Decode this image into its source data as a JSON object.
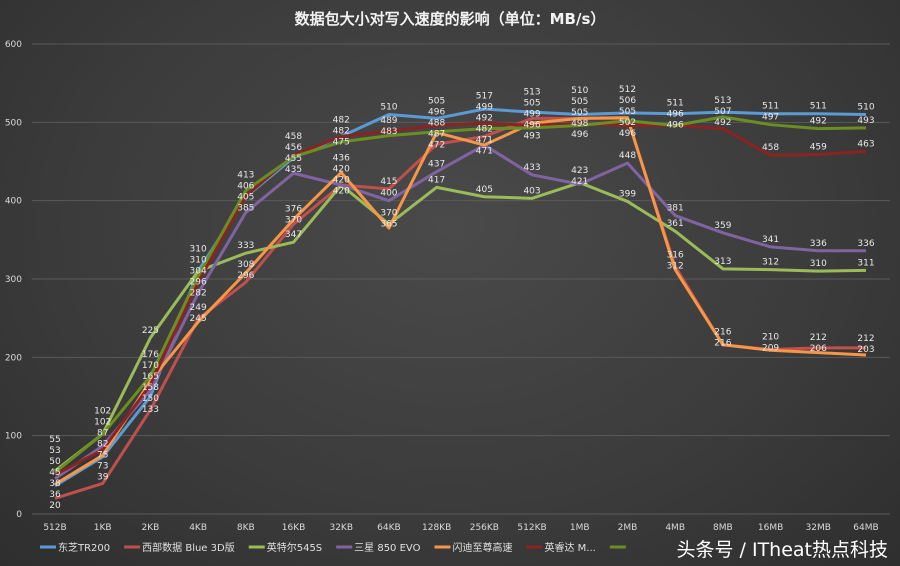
{
  "chart_data": {
    "type": "line",
    "title": "数据包大小对写入速度的影响（单位：MB/s）",
    "xlabel": "",
    "ylabel": "",
    "ylim": [
      0,
      600
    ],
    "yticks": [
      0,
      100,
      200,
      300,
      400,
      500,
      600
    ],
    "grid": true,
    "legend": "bottom",
    "categories": [
      "512B",
      "1KB",
      "2KB",
      "4KB",
      "8KB",
      "16KB",
      "32KB",
      "64KB",
      "128KB",
      "256KB",
      "512KB",
      "1MB",
      "2MB",
      "4MB",
      "8MB",
      "16MB",
      "32MB",
      "64MB"
    ],
    "series": [
      {
        "name": "东芝TR200",
        "color": "#5b9bd5",
        "values": [
          36,
          73,
          150,
          310,
          405,
          455,
          482,
          510,
          505,
          517,
          513,
          510,
          512,
          511,
          513,
          511,
          511,
          510
        ]
      },
      {
        "name": "西部数据 Blue 3D版",
        "color": "#c0504d",
        "values": [
          20,
          39,
          133,
          249,
          296,
          370,
          420,
          415,
          472,
          482,
          505,
          505,
          505,
          316,
          216,
          210,
          212,
          212
        ]
      },
      {
        "name": "英特尔545S",
        "color": "#9bbb59",
        "values": [
          55,
          102,
          225,
          310,
          333,
          347,
          420,
          370,
          417,
          405,
          403,
          423,
          399,
          361,
          313,
          312,
          310,
          311
        ]
      },
      {
        "name": "三星 850 EVO",
        "color": "#8064a2",
        "values": [
          45,
          87,
          158,
          282,
          385,
          435,
          420,
          400,
          437,
          471,
          433,
          421,
          448,
          381,
          359,
          341,
          336,
          336
        ]
      },
      {
        "name": "闪迪至尊高速",
        "color": "#f79646",
        "values": [
          38,
          75,
          170,
          245,
          308,
          376,
          436,
          365,
          487,
          471,
          499,
          505,
          506,
          312,
          216,
          209,
          206,
          203
        ]
      },
      {
        "name": "英睿达 M...",
        "color": "#8b2323",
        "values": [
          50,
          82,
          165,
          296,
          406,
          458,
          482,
          489,
          496,
          499,
          496,
          498,
          496,
          496,
          492,
          458,
          459,
          463
        ]
      },
      {
        "name": "",
        "color": "#6b8e23",
        "values": [
          53,
          102,
          176,
          304,
          413,
          456,
          475,
          483,
          488,
          492,
          493,
          496,
          502,
          496,
          507,
          497,
          492,
          493
        ]
      }
    ]
  },
  "watermark": "头条号 / ITheat热点科技"
}
